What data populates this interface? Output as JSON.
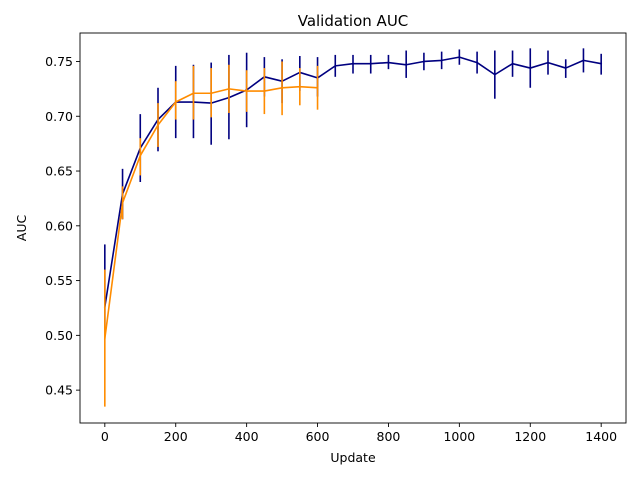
{
  "chart_data": {
    "type": "line",
    "title": "Validation AUC",
    "xlabel": "Update",
    "ylabel": "AUC",
    "xlim": [
      -70,
      1470
    ],
    "ylim": [
      0.42,
      0.776
    ],
    "xticks": [
      0,
      200,
      400,
      600,
      800,
      1000,
      1200,
      1400
    ],
    "yticks": [
      0.45,
      0.5,
      0.55,
      0.6,
      0.65,
      0.7,
      0.75
    ],
    "ytick_labels": [
      "0.45",
      "0.50",
      "0.55",
      "0.60",
      "0.65",
      "0.70",
      "0.75"
    ],
    "grid": false,
    "legend": false,
    "series": [
      {
        "color": "#000080",
        "x": [
          0,
          50,
          100,
          150,
          200,
          250,
          300,
          350,
          400,
          450,
          500,
          550,
          600,
          650,
          700,
          750,
          800,
          850,
          900,
          950,
          1000,
          1050,
          1100,
          1150,
          1200,
          1250,
          1300,
          1350,
          1400
        ],
        "y": [
          0.526,
          0.629,
          0.671,
          0.697,
          0.713,
          0.713,
          0.712,
          0.717,
          0.724,
          0.736,
          0.732,
          0.74,
          0.735,
          0.746,
          0.748,
          0.748,
          0.749,
          0.747,
          0.75,
          0.751,
          0.754,
          0.749,
          0.738,
          0.748,
          0.744,
          0.749,
          0.744,
          0.751,
          0.748
        ],
        "err_low": [
          0.505,
          0.606,
          0.64,
          0.668,
          0.68,
          0.68,
          0.674,
          0.679,
          0.69,
          0.718,
          0.712,
          0.723,
          0.718,
          0.736,
          0.739,
          0.739,
          0.743,
          0.735,
          0.742,
          0.743,
          0.747,
          0.739,
          0.716,
          0.736,
          0.726,
          0.738,
          0.735,
          0.74,
          0.738
        ],
        "err_high": [
          0.583,
          0.652,
          0.702,
          0.726,
          0.746,
          0.747,
          0.749,
          0.756,
          0.758,
          0.754,
          0.752,
          0.755,
          0.754,
          0.756,
          0.756,
          0.756,
          0.756,
          0.76,
          0.758,
          0.759,
          0.761,
          0.759,
          0.76,
          0.76,
          0.762,
          0.76,
          0.752,
          0.762,
          0.757
        ]
      },
      {
        "color": "#ff8c00",
        "x": [
          0,
          50,
          100,
          150,
          200,
          250,
          300,
          350,
          400,
          450,
          500,
          550,
          600
        ],
        "y": [
          0.497,
          0.621,
          0.664,
          0.692,
          0.713,
          0.721,
          0.721,
          0.725,
          0.723,
          0.723,
          0.726,
          0.727,
          0.726
        ],
        "err_low": [
          0.435,
          0.606,
          0.646,
          0.672,
          0.697,
          0.697,
          0.699,
          0.703,
          0.704,
          0.702,
          0.701,
          0.71,
          0.706
        ],
        "err_high": [
          0.56,
          0.636,
          0.68,
          0.712,
          0.732,
          0.746,
          0.744,
          0.747,
          0.742,
          0.744,
          0.75,
          0.744,
          0.746
        ]
      }
    ]
  }
}
